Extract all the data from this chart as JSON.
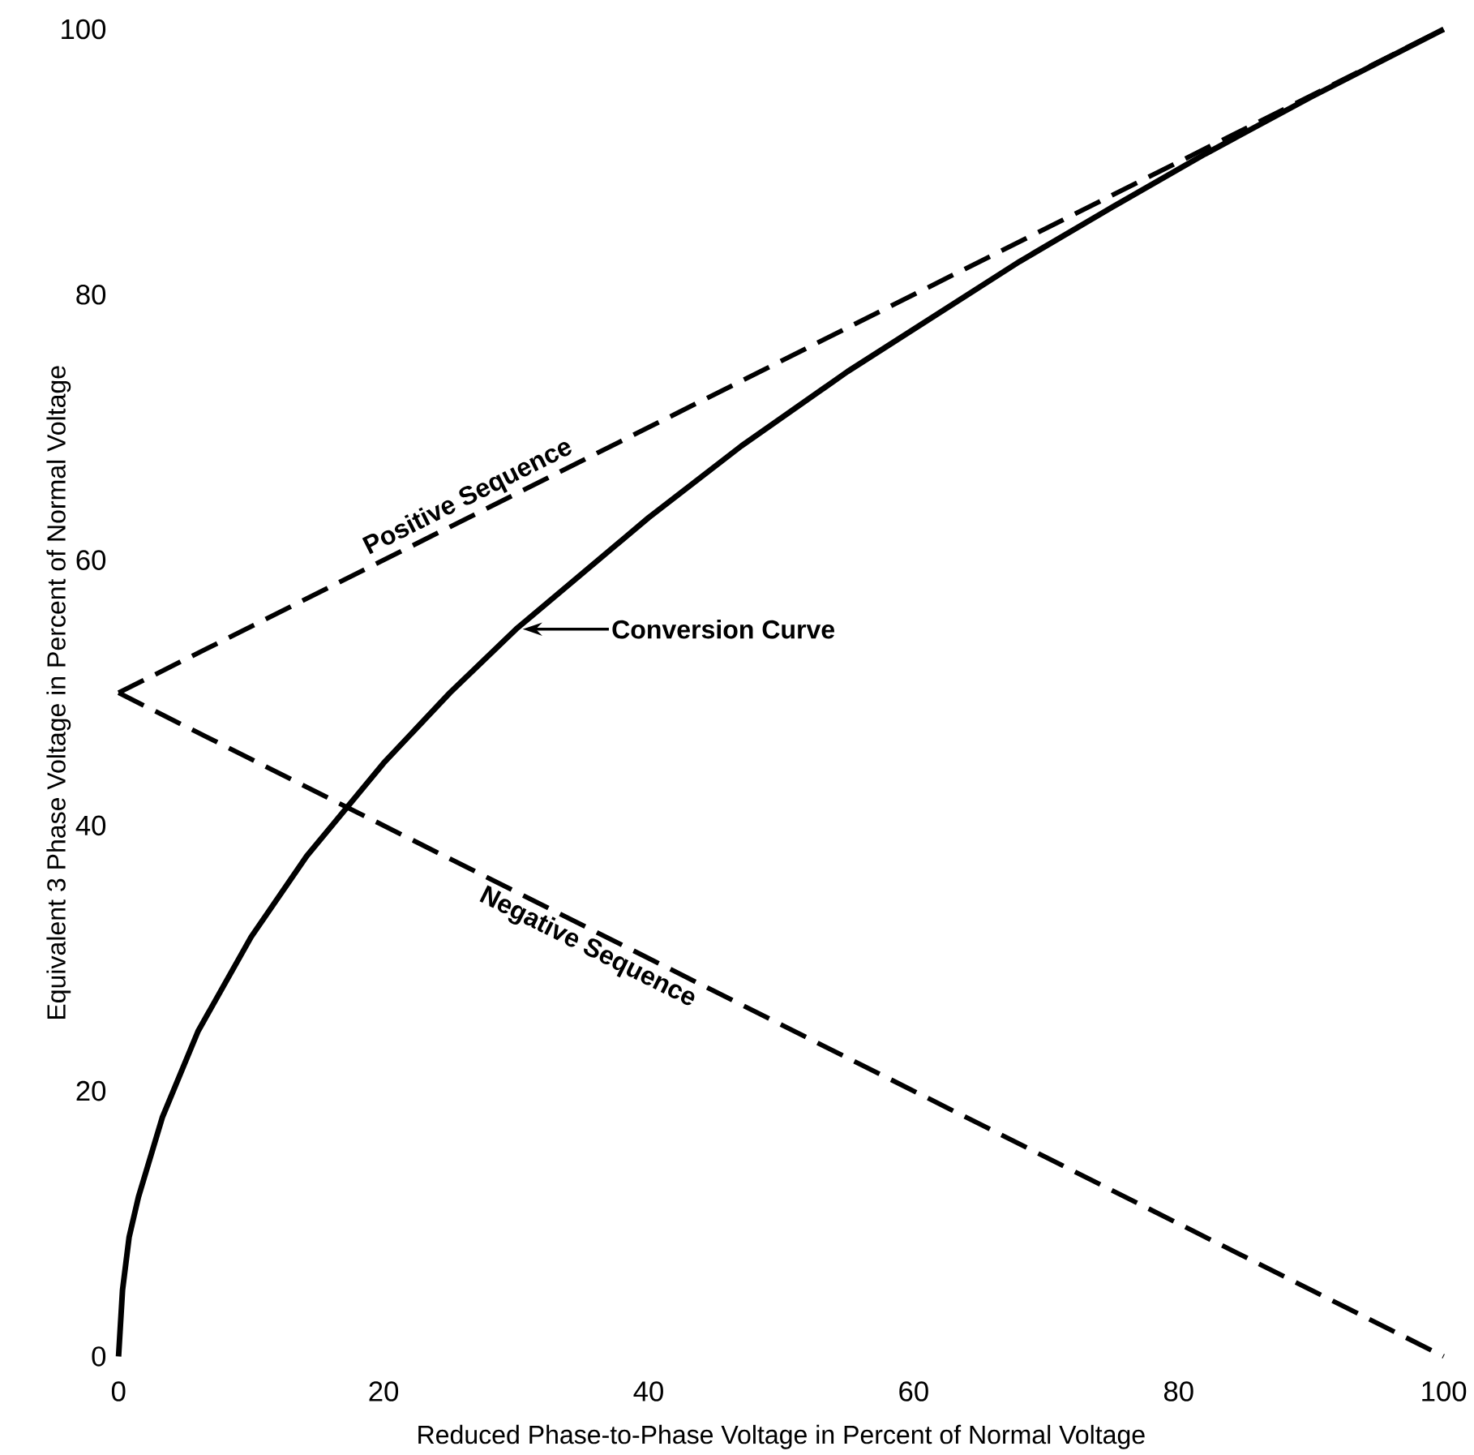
{
  "chart_data": {
    "type": "line",
    "xlabel": "Reduced Phase-to-Phase Voltage in Percent of Normal Voltage",
    "ylabel": "Equivalent 3 Phase Voltage in Percent of Normal Voltage",
    "xlim": [
      0,
      100
    ],
    "ylim": [
      0,
      100
    ],
    "xticks": [
      0,
      20,
      40,
      60,
      80,
      100
    ],
    "yticks": [
      0,
      20,
      40,
      60,
      80,
      100
    ],
    "marker": "none",
    "series": [
      {
        "name": "Conversion Curve",
        "color": "#000000",
        "line_style": "solid",
        "x": [
          0,
          0.3,
          0.8,
          1.5,
          3.3,
          6,
          10,
          14.2,
          20,
          25,
          30,
          40,
          47,
          55,
          68,
          75,
          82,
          90,
          100
        ],
        "values": [
          0,
          5,
          9,
          12,
          18,
          24.5,
          31.6,
          37.7,
          44.7,
          50,
          54.8,
          63.2,
          68.6,
          74.2,
          82.5,
          86.6,
          90.6,
          94.9,
          100
        ]
      },
      {
        "name": "Positive Sequence",
        "color": "#000000",
        "line_style": "dashed",
        "x": [
          0,
          100
        ],
        "values": [
          50,
          100
        ]
      },
      {
        "name": "Negative Sequence",
        "color": "#000000",
        "line_style": "dashed",
        "x": [
          0,
          100
        ],
        "values": [
          50,
          0
        ]
      }
    ]
  }
}
